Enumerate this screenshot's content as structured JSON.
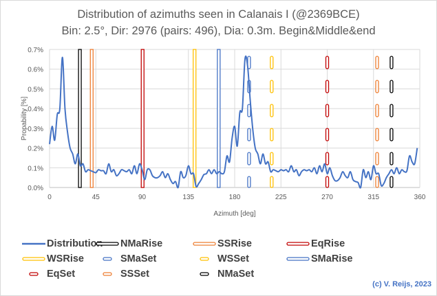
{
  "chart_data": {
    "type": "line",
    "title": "Distribution of azimuths seen in Calanais I (@2369BCE)",
    "subtitle": "Bin: 2.5°, Dir: 2976 (pairs: 496), Dia: 0.3m. Begin&Middle&end",
    "xlabel": "Azimuth [deg]",
    "ylabel": "Propability [%]",
    "xlim": [
      0,
      360
    ],
    "ylim": [
      0,
      0.7
    ],
    "xticks": [
      "0",
      "45",
      "90",
      "135",
      "180",
      "225",
      "270",
      "315",
      "360"
    ],
    "yticks": [
      "0.0%",
      "0.1%",
      "0.2%",
      "0.3%",
      "0.4%",
      "0.5%",
      "0.6%",
      "0.7%"
    ],
    "grid": true,
    "legend_placement": "bottom",
    "series": [
      {
        "name": "Distribution",
        "color": "#4472c4",
        "x_step": 2.5,
        "values": [
          0.22,
          0.31,
          0.24,
          0.37,
          0.4,
          0.66,
          0.4,
          0.28,
          0.2,
          0.17,
          0.12,
          0.17,
          0.11,
          0.12,
          0.08,
          0.09,
          0.085,
          0.08,
          0.075,
          0.09,
          0.085,
          0.085,
          0.07,
          0.12,
          0.08,
          0.09,
          0.06,
          0.07,
          0.09,
          0.085,
          0.08,
          0.09,
          0.07,
          0.11,
          0.07,
          0.12,
          0.09,
          0.04,
          0.09,
          0.09,
          0.06,
          0.05,
          0.05,
          0.06,
          0.08,
          0.05,
          0.07,
          0.04,
          0.02,
          0.03,
          0.0,
          0.08,
          0.05,
          0.06,
          0.11,
          0.07,
          0.07,
          0.005,
          0.02,
          0.04,
          0.065,
          0.07,
          0.09,
          0.07,
          0.09,
          0.07,
          0.08,
          0.07,
          0.08,
          0.16,
          0.13,
          0.25,
          0.31,
          0.21,
          0.38,
          0.4,
          0.65,
          0.62,
          0.45,
          0.3,
          0.2,
          0.17,
          0.12,
          0.17,
          0.12,
          0.13,
          0.08,
          0.09,
          0.085,
          0.08,
          0.09,
          0.085,
          0.09,
          0.08,
          0.11,
          0.08,
          0.09,
          0.06,
          0.08,
          0.09,
          0.085,
          0.09,
          0.08,
          0.1,
          0.07,
          0.11,
          0.08,
          0.12,
          0.07,
          0.1,
          0.06,
          0.035,
          0.035,
          0.05,
          0.08,
          0.06,
          0.05,
          0.08,
          0.04,
          0.03,
          0.025,
          0.0,
          0.09,
          0.05,
          0.08,
          0.04,
          0.11,
          0.07,
          0.07,
          0.01,
          0.02,
          0.05,
          0.07,
          0.09,
          0.07,
          0.1,
          0.07,
          0.09,
          0.08,
          0.085,
          0.16,
          0.13,
          0.12,
          0.2
        ]
      }
    ],
    "markers": [
      {
        "name": "NMaRise",
        "azimuth": 29.5,
        "color": "#000000",
        "style": "solid"
      },
      {
        "name": "SSRise",
        "azimuth": 41,
        "color": "#ed7d31",
        "style": "solid"
      },
      {
        "name": "EqRise",
        "azimuth": 90.5,
        "color": "#c00000",
        "style": "solid"
      },
      {
        "name": "WSRise",
        "azimuth": 141,
        "color": "#ffc000",
        "style": "solid"
      },
      {
        "name": "SMaSet",
        "azimuth": 194,
        "color": "#4472c4",
        "style": "dashed"
      },
      {
        "name": "WSSet",
        "azimuth": 216,
        "color": "#ffc000",
        "style": "dashed"
      },
      {
        "name": "SMaRise",
        "azimuth": 164.5,
        "color": "#4472c4",
        "style": "solid"
      },
      {
        "name": "EqSet",
        "azimuth": 270,
        "color": "#c00000",
        "style": "dashed"
      },
      {
        "name": "SSSet",
        "azimuth": 318.5,
        "color": "#ed7d31",
        "style": "dashed"
      },
      {
        "name": "NMaSet",
        "azimuth": 332.5,
        "color": "#000000",
        "style": "dashed"
      }
    ]
  },
  "credit": "(c) V. Reijs, 2023"
}
